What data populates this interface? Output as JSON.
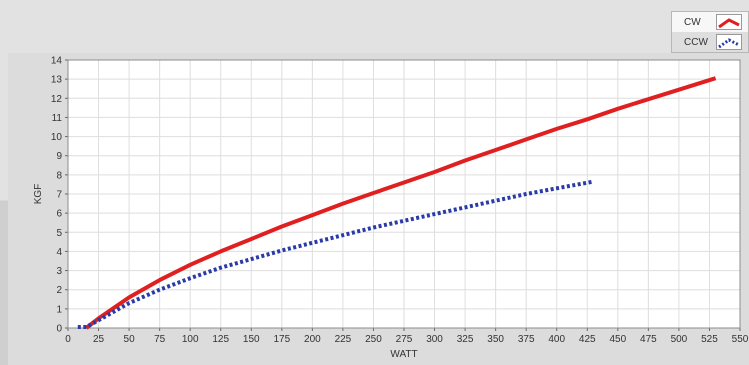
{
  "legend": [
    {
      "label": "CW",
      "color": "#e02020",
      "style": "solid"
    },
    {
      "label": "CCW",
      "color": "#2a3aa8",
      "style": "dotted"
    }
  ],
  "chart_data": {
    "type": "line",
    "xlabel": "WATT",
    "ylabel": "KGF",
    "xlim": [
      0,
      550
    ],
    "ylim": [
      0,
      14
    ],
    "xticks": [
      0,
      25,
      50,
      75,
      100,
      125,
      150,
      175,
      200,
      225,
      250,
      275,
      300,
      325,
      350,
      375,
      400,
      425,
      450,
      475,
      500,
      525,
      550
    ],
    "yticks": [
      0,
      1,
      2,
      3,
      4,
      5,
      6,
      7,
      8,
      9,
      10,
      11,
      12,
      13,
      14
    ],
    "grid": true,
    "legend_position": "top-right, outside plot",
    "series": [
      {
        "name": "CW",
        "color": "#e02020",
        "style": "solid",
        "x": [
          15,
          25,
          50,
          75,
          100,
          125,
          150,
          175,
          200,
          225,
          250,
          275,
          300,
          325,
          350,
          375,
          400,
          425,
          450,
          475,
          500,
          530
        ],
        "y": [
          0,
          0.5,
          1.6,
          2.5,
          3.3,
          4.0,
          4.65,
          5.3,
          5.9,
          6.5,
          7.05,
          7.6,
          8.15,
          8.75,
          9.3,
          9.85,
          10.4,
          10.9,
          11.45,
          11.95,
          12.45,
          13.05
        ]
      },
      {
        "name": "CCW",
        "color": "#2a3aa8",
        "style": "dotted",
        "x": [
          8,
          15,
          25,
          50,
          75,
          100,
          125,
          150,
          175,
          200,
          225,
          250,
          275,
          300,
          325,
          350,
          375,
          400,
          430
        ],
        "y": [
          0.05,
          0.05,
          0.4,
          1.3,
          2.0,
          2.6,
          3.15,
          3.6,
          4.05,
          4.45,
          4.85,
          5.25,
          5.6,
          5.95,
          6.3,
          6.65,
          7.0,
          7.3,
          7.65
        ]
      }
    ]
  }
}
